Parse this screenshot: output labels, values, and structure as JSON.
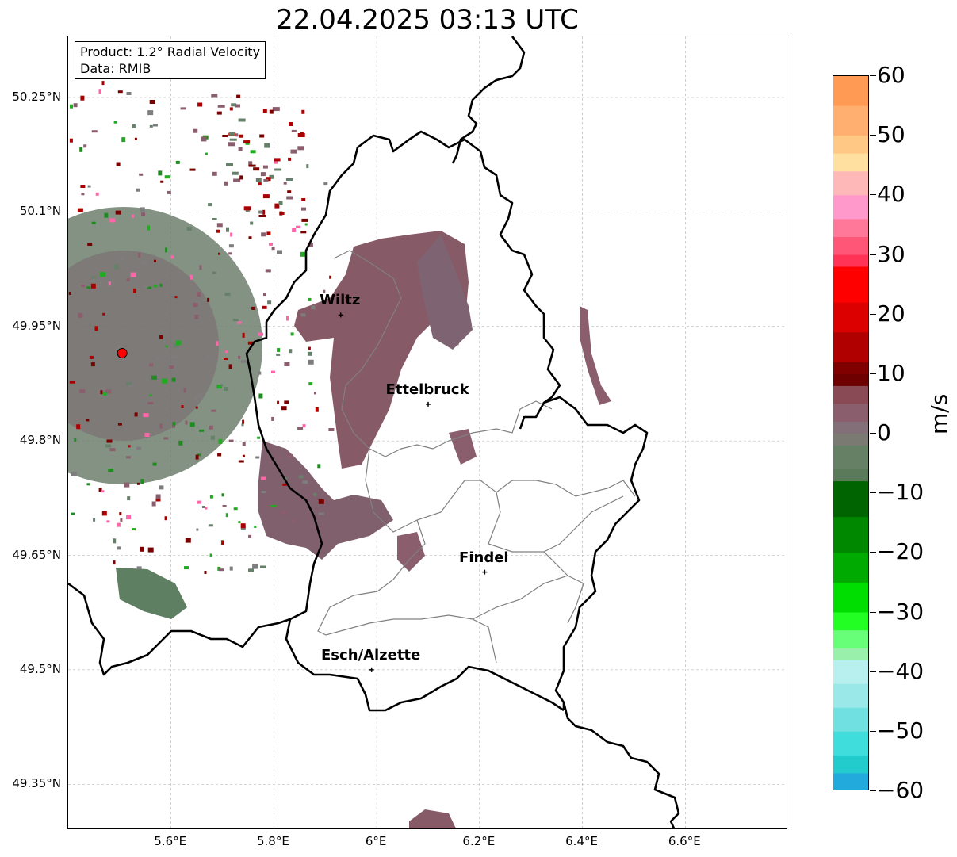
{
  "title": "22.04.2025 03:13 UTC",
  "info": {
    "product": "Product: 1.2° Radial Velocity",
    "data": "Data: RMIB"
  },
  "lat_labels": [
    "50.25°N",
    "50.1°N",
    "49.95°N",
    "49.8°N",
    "49.65°N",
    "49.5°N",
    "49.35°N"
  ],
  "lon_labels": [
    "5.6°E",
    "5.8°E",
    "6°E",
    "6.2°E",
    "6.4°E",
    "6.6°E"
  ],
  "cities": [
    {
      "name": "Wiltz",
      "lon": 5.93,
      "lat": 49.965
    },
    {
      "name": "Ettelbruck",
      "lon": 6.1,
      "lat": 49.848
    },
    {
      "name": "Findel",
      "lon": 6.21,
      "lat": 49.628
    },
    {
      "name": "Esch/Alzette",
      "lon": 5.99,
      "lat": 49.5
    }
  ],
  "radar_site": {
    "lon": 5.505,
    "lat": 49.915,
    "color": "#ff0000"
  },
  "colorbar": {
    "unit": "m/s",
    "range": [
      -60,
      60
    ],
    "tick_labels": [
      "60",
      "50",
      "40",
      "30",
      "20",
      "10",
      "0",
      "−10",
      "−20",
      "−30",
      "−40",
      "−50",
      "−60"
    ]
  },
  "colors": {
    "border": "#000000",
    "canton": "#808080",
    "echo_mauve": "#8a5e6c",
    "echo_green": "#66806a",
    "echo_red": "#aa0000"
  }
}
